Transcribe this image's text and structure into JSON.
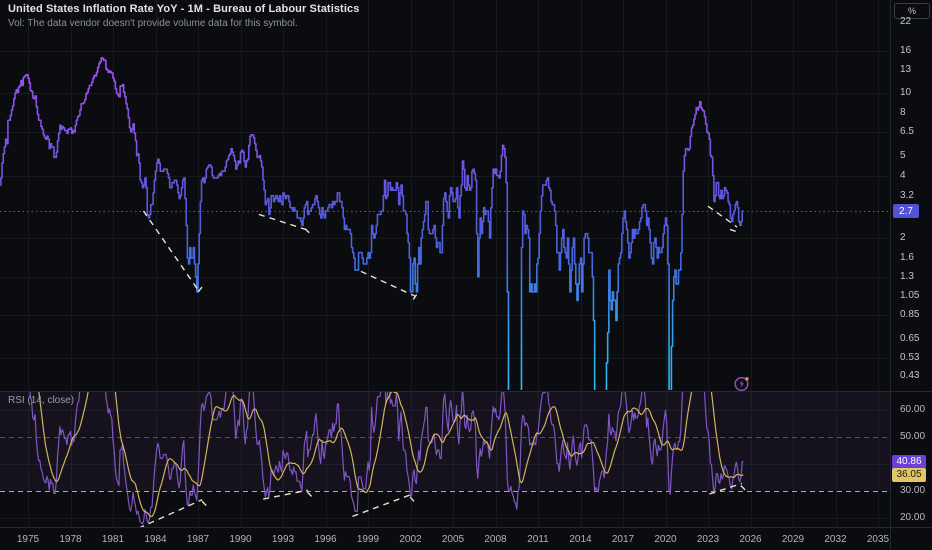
{
  "header": {
    "title": "United States Inflation Rate YoY - 1M - Bureau of Labour Statistics",
    "subtitle": "Vol: The data vendor doesn't provide volume data for this symbol."
  },
  "price_axis": {
    "unit_button": "%",
    "current_price_label": "2.7"
  },
  "rsi_panel": {
    "legend": "RSI (14, close)",
    "rsi_value": "40.86",
    "ma_value": "36.05"
  },
  "chart_data": {
    "type": "line",
    "title": "United States Inflation Rate YoY",
    "interval": "1M",
    "source": "Bureau of Labour Statistics",
    "unit": "%",
    "y_scale": "logarithmic",
    "x_start_year": 1973,
    "x_step": "1 month",
    "x_ticks": [
      1975,
      1978,
      1981,
      1984,
      1987,
      1990,
      1993,
      1996,
      1999,
      2002,
      2005,
      2008,
      2011,
      2014,
      2017,
      2020,
      2023,
      2026,
      2029,
      2032,
      2035
    ],
    "y_ticks": [
      "22",
      "16",
      "13",
      "10",
      "8",
      "6.5",
      "5",
      "4",
      "3.2",
      "2",
      "1.6",
      "1.3",
      "1.05",
      "0.85",
      "0.65",
      "0.53",
      "0.43"
    ],
    "grid_y_values": [
      16,
      10,
      6.5,
      4,
      2,
      1.3,
      0.85,
      0.53
    ],
    "current_value": 2.7,
    "series": [
      {
        "name": "US Inflation Rate YoY (%), monthly from Jan 1973",
        "values": [
          3.6,
          3.9,
          4.6,
          5.1,
          5.5,
          6.0,
          5.7,
          7.4,
          7.4,
          7.8,
          8.3,
          8.7,
          9.4,
          10.0,
          10.4,
          10.1,
          10.7,
          10.9,
          11.5,
          10.9,
          11.9,
          12.1,
          12.2,
          12.3,
          11.8,
          11.2,
          10.3,
          10.2,
          9.5,
          9.4,
          9.7,
          8.6,
          7.9,
          7.4,
          7.4,
          6.9,
          6.7,
          6.3,
          6.1,
          6.0,
          6.2,
          6.0,
          5.4,
          5.7,
          5.5,
          5.5,
          4.9,
          4.9,
          5.2,
          5.9,
          6.4,
          7.0,
          6.7,
          6.9,
          6.8,
          6.6,
          6.6,
          6.4,
          6.7,
          6.7,
          6.8,
          6.4,
          6.6,
          6.5,
          7.0,
          7.4,
          7.7,
          7.8,
          8.3,
          8.9,
          8.9,
          9.0,
          9.3,
          9.9,
          10.1,
          10.5,
          10.9,
          10.9,
          11.3,
          11.8,
          12.2,
          12.1,
          12.6,
          13.3,
          13.9,
          14.2,
          14.8,
          14.7,
          14.4,
          14.4,
          13.1,
          12.9,
          12.6,
          12.8,
          12.6,
          12.5,
          11.8,
          11.4,
          10.5,
          10.0,
          9.8,
          9.6,
          10.8,
          10.8,
          11.0,
          10.1,
          9.6,
          8.9,
          8.4,
          7.6,
          6.8,
          6.5,
          6.7,
          7.1,
          6.4,
          5.9,
          5.0,
          5.1,
          4.6,
          3.8,
          3.7,
          3.5,
          3.6,
          3.9,
          3.5,
          2.6,
          2.5,
          2.6,
          2.9,
          2.9,
          3.3,
          3.8,
          4.2,
          4.6,
          4.8,
          4.6,
          4.2,
          4.2,
          4.2,
          4.3,
          4.3,
          4.3,
          4.1,
          3.9,
          3.5,
          3.5,
          3.7,
          3.7,
          3.8,
          3.8,
          3.6,
          3.3,
          3.1,
          3.2,
          3.5,
          3.8,
          3.9,
          3.1,
          2.3,
          1.6,
          1.5,
          1.8,
          1.6,
          1.6,
          1.8,
          1.5,
          1.3,
          1.1,
          1.5,
          2.1,
          3.0,
          3.8,
          3.9,
          3.7,
          3.9,
          4.3,
          4.4,
          4.5,
          4.5,
          4.4,
          4.0,
          3.9,
          3.9,
          3.9,
          3.9,
          4.0,
          4.1,
          4.0,
          4.2,
          4.2,
          4.2,
          4.4,
          4.7,
          4.8,
          5.0,
          5.1,
          5.4,
          5.2,
          5.0,
          4.7,
          4.3,
          4.5,
          4.7,
          4.6,
          5.2,
          5.3,
          5.2,
          4.7,
          4.4,
          4.7,
          4.8,
          5.6,
          6.2,
          6.3,
          6.3,
          6.1,
          5.7,
          5.3,
          4.9,
          4.9,
          5.0,
          4.7,
          4.4,
          3.8,
          3.4,
          2.9,
          3.0,
          3.1,
          2.6,
          2.8,
          3.2,
          3.2,
          3.0,
          3.1,
          3.2,
          3.1,
          3.0,
          3.2,
          3.0,
          2.9,
          3.3,
          3.2,
          3.1,
          3.2,
          3.2,
          3.0,
          2.8,
          2.8,
          2.7,
          2.8,
          2.7,
          2.7,
          2.5,
          2.5,
          2.5,
          2.4,
          2.3,
          2.5,
          2.8,
          2.9,
          3.0,
          2.6,
          2.7,
          2.7,
          2.8,
          2.9,
          2.9,
          3.1,
          3.2,
          3.0,
          2.8,
          2.6,
          2.5,
          2.8,
          2.6,
          2.5,
          2.7,
          2.7,
          2.8,
          2.9,
          2.9,
          2.8,
          3.0,
          2.9,
          3.0,
          3.0,
          3.3,
          3.3,
          3.0,
          3.0,
          2.8,
          2.5,
          2.2,
          2.3,
          2.2,
          2.2,
          2.2,
          2.1,
          1.8,
          1.7,
          1.6,
          1.4,
          1.4,
          1.4,
          1.7,
          1.7,
          1.7,
          1.6,
          1.5,
          1.5,
          1.5,
          1.6,
          1.7,
          1.6,
          1.7,
          2.3,
          2.1,
          2.0,
          2.1,
          2.3,
          2.6,
          2.6,
          2.6,
          2.7,
          2.7,
          3.2,
          3.8,
          3.1,
          3.2,
          3.7,
          3.7,
          3.4,
          3.5,
          3.4,
          3.4,
          3.4,
          3.7,
          3.5,
          2.9,
          3.3,
          3.6,
          3.2,
          2.7,
          2.7,
          2.6,
          2.1,
          1.9,
          1.6,
          1.1,
          1.1,
          1.5,
          1.6,
          1.2,
          1.1,
          1.5,
          1.8,
          1.5,
          2.0,
          2.2,
          2.4,
          2.6,
          3.0,
          3.0,
          2.2,
          2.1,
          2.1,
          2.1,
          2.2,
          2.3,
          2.0,
          1.8,
          1.9,
          1.9,
          1.7,
          1.7,
          2.3,
          3.1,
          3.3,
          3.0,
          2.7,
          2.5,
          3.2,
          3.5,
          3.3,
          3.0,
          3.0,
          3.1,
          3.5,
          2.8,
          2.5,
          3.2,
          3.6,
          4.7,
          4.3,
          3.5,
          3.4,
          4.0,
          3.6,
          3.4,
          3.5,
          4.2,
          4.3,
          4.1,
          3.8,
          2.1,
          1.3,
          2.0,
          2.5,
          2.1,
          2.4,
          2.8,
          2.6,
          2.7,
          2.7,
          2.4,
          2.0,
          2.8,
          3.5,
          4.3,
          4.1,
          4.3,
          4.0,
          4.0,
          3.9,
          4.2,
          5.0,
          5.6,
          5.4,
          4.9,
          3.7,
          1.1,
          0.1,
          0.0,
          0.2,
          -0.4,
          -0.7,
          -1.3,
          -1.4,
          -2.1,
          -1.5,
          -1.3,
          -0.2,
          1.8,
          2.7,
          2.6,
          2.1,
          2.3,
          2.2,
          2.0,
          1.1,
          1.2,
          1.1,
          1.1,
          1.2,
          1.1,
          1.5,
          1.6,
          2.1,
          2.7,
          3.2,
          3.6,
          3.6,
          3.6,
          3.8,
          3.9,
          3.5,
          3.4,
          3.0,
          2.9,
          2.9,
          2.7,
          2.3,
          1.7,
          1.7,
          1.4,
          1.7,
          2.0,
          2.2,
          1.8,
          1.7,
          1.6,
          2.0,
          1.5,
          1.1,
          1.4,
          1.8,
          2.0,
          1.5,
          1.2,
          1.0,
          1.2,
          1.5,
          1.6,
          1.1,
          1.5,
          2.0,
          2.1,
          2.1,
          2.0,
          1.7,
          1.7,
          1.7,
          1.3,
          0.8,
          -0.1,
          0.0,
          -0.1,
          -0.2,
          0.0,
          0.1,
          0.2,
          0.2,
          0.0,
          0.2,
          0.5,
          0.7,
          1.4,
          1.0,
          0.9,
          1.1,
          1.0,
          1.0,
          0.8,
          1.1,
          1.5,
          1.6,
          1.7,
          2.1,
          2.5,
          2.7,
          2.4,
          2.2,
          1.9,
          1.6,
          1.7,
          1.9,
          2.2,
          2.0,
          2.2,
          2.1,
          2.1,
          2.2,
          2.4,
          2.5,
          2.8,
          2.9,
          2.9,
          2.7,
          2.3,
          2.5,
          2.2,
          1.9,
          1.6,
          1.5,
          1.9,
          2.0,
          1.8,
          1.6,
          1.8,
          1.7,
          1.7,
          1.8,
          2.1,
          2.3,
          2.5,
          2.3,
          1.5,
          0.3,
          0.1,
          0.6,
          1.0,
          1.3,
          1.4,
          1.2,
          1.2,
          1.4,
          1.4,
          1.7,
          2.6,
          4.2,
          5.0,
          5.4,
          5.4,
          5.3,
          5.4,
          6.2,
          6.8,
          7.0,
          7.5,
          7.9,
          8.5,
          8.3,
          8.6,
          9.1,
          8.5,
          8.3,
          8.2,
          7.7,
          7.1,
          6.5,
          6.4,
          6.0,
          5.0,
          4.9,
          4.0,
          3.0,
          3.2,
          3.7,
          3.7,
          3.2,
          3.1,
          3.4,
          3.1,
          3.2,
          3.5,
          3.4,
          3.3,
          3.0,
          2.9,
          2.5,
          2.4,
          2.6,
          2.7,
          2.9,
          3.0,
          2.8,
          2.4,
          2.3,
          2.4,
          2.7,
          2.7
        ]
      }
    ],
    "trendlines_price": [
      {
        "points": [
          [
            1983.15,
            2.7
          ],
          [
            1986.98,
            1.13
          ]
        ]
      },
      {
        "points": [
          [
            1987.02,
            1.1
          ],
          [
            1987.45,
            1.2
          ]
        ]
      },
      {
        "points": [
          [
            1991.3,
            2.6
          ],
          [
            1994.6,
            2.2
          ]
        ]
      },
      {
        "points": [
          [
            1994.55,
            2.22
          ],
          [
            1994.85,
            2.12
          ]
        ]
      },
      {
        "points": [
          [
            1998.5,
            1.38
          ],
          [
            2002.3,
            1.05
          ]
        ]
      },
      {
        "points": [
          [
            2002.2,
            1.01
          ],
          [
            2002.55,
            1.1
          ]
        ]
      },
      {
        "points": [
          [
            2023.0,
            2.85
          ],
          [
            2025.05,
            2.26
          ]
        ]
      },
      {
        "points": [
          [
            2024.55,
            2.2
          ],
          [
            2025.0,
            2.15
          ]
        ]
      }
    ],
    "rsi": {
      "legend": "RSI (14, close)",
      "length": 14,
      "source": "close",
      "last_value": 40.86,
      "ma_last_value": 36.05,
      "levels_dashed": [
        50,
        30
      ],
      "band": [
        30,
        70
      ],
      "y_ticks": [
        "60.00",
        "50.00",
        "30.00",
        "20.00"
      ],
      "grid_y_values": [
        20,
        40,
        60
      ],
      "trendlines": [
        {
          "points": [
            [
              1982.8,
              16.2
            ],
            [
              1987.3,
              26.8
            ]
          ]
        },
        {
          "points": [
            [
              1987.28,
              26.2
            ],
            [
              1987.62,
              24.4
            ]
          ]
        },
        {
          "points": [
            [
              1991.6,
              27.0
            ],
            [
              1994.75,
              30.3
            ]
          ]
        },
        {
          "points": [
            [
              1994.72,
              29.6
            ],
            [
              1995.02,
              28.0
            ]
          ]
        },
        {
          "points": [
            [
              1997.9,
              20.6
            ],
            [
              2002.0,
              28.6
            ]
          ]
        },
        {
          "points": [
            [
              2001.97,
              27.8
            ],
            [
              2002.27,
              26.0
            ]
          ]
        },
        {
          "points": [
            [
              2023.1,
              28.9
            ],
            [
              2025.4,
              32.8
            ]
          ]
        },
        {
          "points": [
            [
              2025.32,
              32.0
            ],
            [
              2025.62,
              30.4
            ]
          ]
        }
      ]
    }
  },
  "icons": {
    "lightning": "boost-lightning"
  },
  "colors": {
    "background": "#0b0c0f",
    "grid": "#17191e",
    "axis_border": "#23262e",
    "pane_separator": "#262932",
    "line_high": "#aa60f6",
    "line_mid": "#5558dc",
    "line_low": "#2fbaf2",
    "current_price": "#5352d4",
    "rsi_line": "#7e57c2",
    "rsi_ma_line": "#d4b35b",
    "rsi_band_fill": "rgba(126,87,194,0.09)",
    "rsi_level_mid": "#50525c",
    "rsi_level_low": "#a8abb5",
    "trendline": "#e9e2cc",
    "rsi_label_bg": "#6c40d8",
    "ma_label_bg": "#e4c566",
    "icon_purple": "#9b4fd1",
    "icon_orange": "#e09b3d"
  }
}
